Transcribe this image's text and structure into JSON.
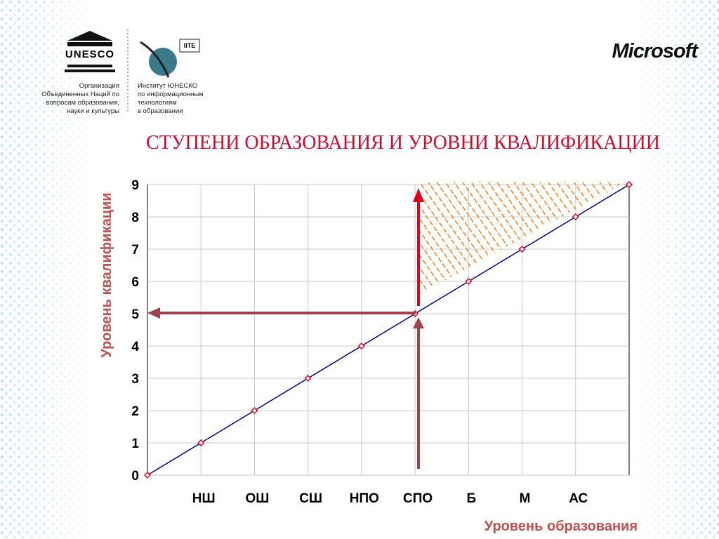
{
  "header": {
    "unesco": "UNESCO",
    "unesco_org": [
      "Организация",
      "Объединенных Наций по",
      "вопросам образования,",
      "науки и культуры"
    ],
    "iite": "IITE",
    "iite_org": [
      "Институт ЮНЕСКО",
      "по информационным",
      "технологиям",
      "в образовании"
    ],
    "microsoft": "Microsoft"
  },
  "chart_data": {
    "type": "line",
    "title": "СТУПЕНИ ОБРАЗОВАНИЯ И УРОВНИ КВАЛИФИКАЦИИ",
    "y_label": "Уровень квалификации",
    "x_label": "Уровень образования",
    "categories": [
      null,
      "НШ",
      "ОШ",
      "СШ",
      "НПО",
      "СПО",
      "Б",
      "М",
      "АС",
      null
    ],
    "series": [
      {
        "color": "#000080",
        "marker_color": "#e0001b",
        "values": [
          0,
          1,
          2,
          3,
          4,
          5,
          6,
          7,
          8,
          9
        ]
      }
    ],
    "ylim": [
      0,
      9
    ],
    "yticks": [
      0,
      1,
      2,
      3,
      4,
      5,
      6,
      7,
      8,
      9
    ],
    "grid": true
  }
}
